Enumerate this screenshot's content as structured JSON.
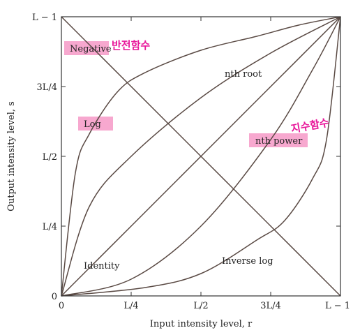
{
  "chart_data": {
    "type": "line",
    "xlabel": "Input intensity level, r",
    "ylabel": "Output intensity level, s",
    "xlim": [
      0,
      1
    ],
    "ylim": [
      0,
      1
    ],
    "grid": false,
    "x_ticks": [
      {
        "v": 0,
        "label": "0"
      },
      {
        "v": 0.25,
        "label": "L/4"
      },
      {
        "v": 0.5,
        "label": "L/2"
      },
      {
        "v": 0.75,
        "label": "3L/4"
      },
      {
        "v": 1,
        "label": "L − 1"
      }
    ],
    "y_ticks": [
      {
        "v": 0,
        "label": "0"
      },
      {
        "v": 0.25,
        "label": "L/4"
      },
      {
        "v": 0.5,
        "label": "L/2"
      },
      {
        "v": 0.75,
        "label": "3L/4"
      },
      {
        "v": 1,
        "label": "L − 1"
      }
    ],
    "series": [
      {
        "name": "Negative",
        "x": [
          0,
          0.25,
          0.5,
          0.75,
          1
        ],
        "y": [
          1,
          0.75,
          0.5,
          0.25,
          0
        ]
      },
      {
        "name": "Log",
        "x": [
          0,
          0.05,
          0.1,
          0.2,
          0.3,
          0.5,
          0.7,
          0.85,
          1
        ],
        "y": [
          0,
          0.44,
          0.58,
          0.73,
          0.8,
          0.88,
          0.93,
          0.97,
          1
        ]
      },
      {
        "name": "nth root",
        "x": [
          0,
          0.1,
          0.25,
          0.5,
          0.75,
          1
        ],
        "y": [
          0,
          0.32,
          0.5,
          0.71,
          0.87,
          1
        ]
      },
      {
        "name": "Identity",
        "x": [
          0,
          0.25,
          0.5,
          0.75,
          1
        ],
        "y": [
          0,
          0.25,
          0.5,
          0.75,
          1
        ]
      },
      {
        "name": "nth power",
        "x": [
          0,
          0.25,
          0.5,
          0.75,
          0.9,
          1
        ],
        "y": [
          0,
          0.06,
          0.25,
          0.56,
          0.81,
          1
        ]
      },
      {
        "name": "Inverse log",
        "x": [
          0,
          0.3,
          0.5,
          0.7,
          0.8,
          0.9,
          0.95,
          1
        ],
        "y": [
          0,
          0.03,
          0.08,
          0.2,
          0.27,
          0.42,
          0.56,
          1
        ]
      }
    ],
    "curve_labels": [
      "Negative",
      "Log",
      "nth root",
      "Identity",
      "nth power",
      "Inverse log"
    ],
    "highlight_color": "#f7a8cf",
    "annotation_color": "#e8179a",
    "handwritten_notes": [
      "반전함수",
      "지수함수"
    ]
  }
}
